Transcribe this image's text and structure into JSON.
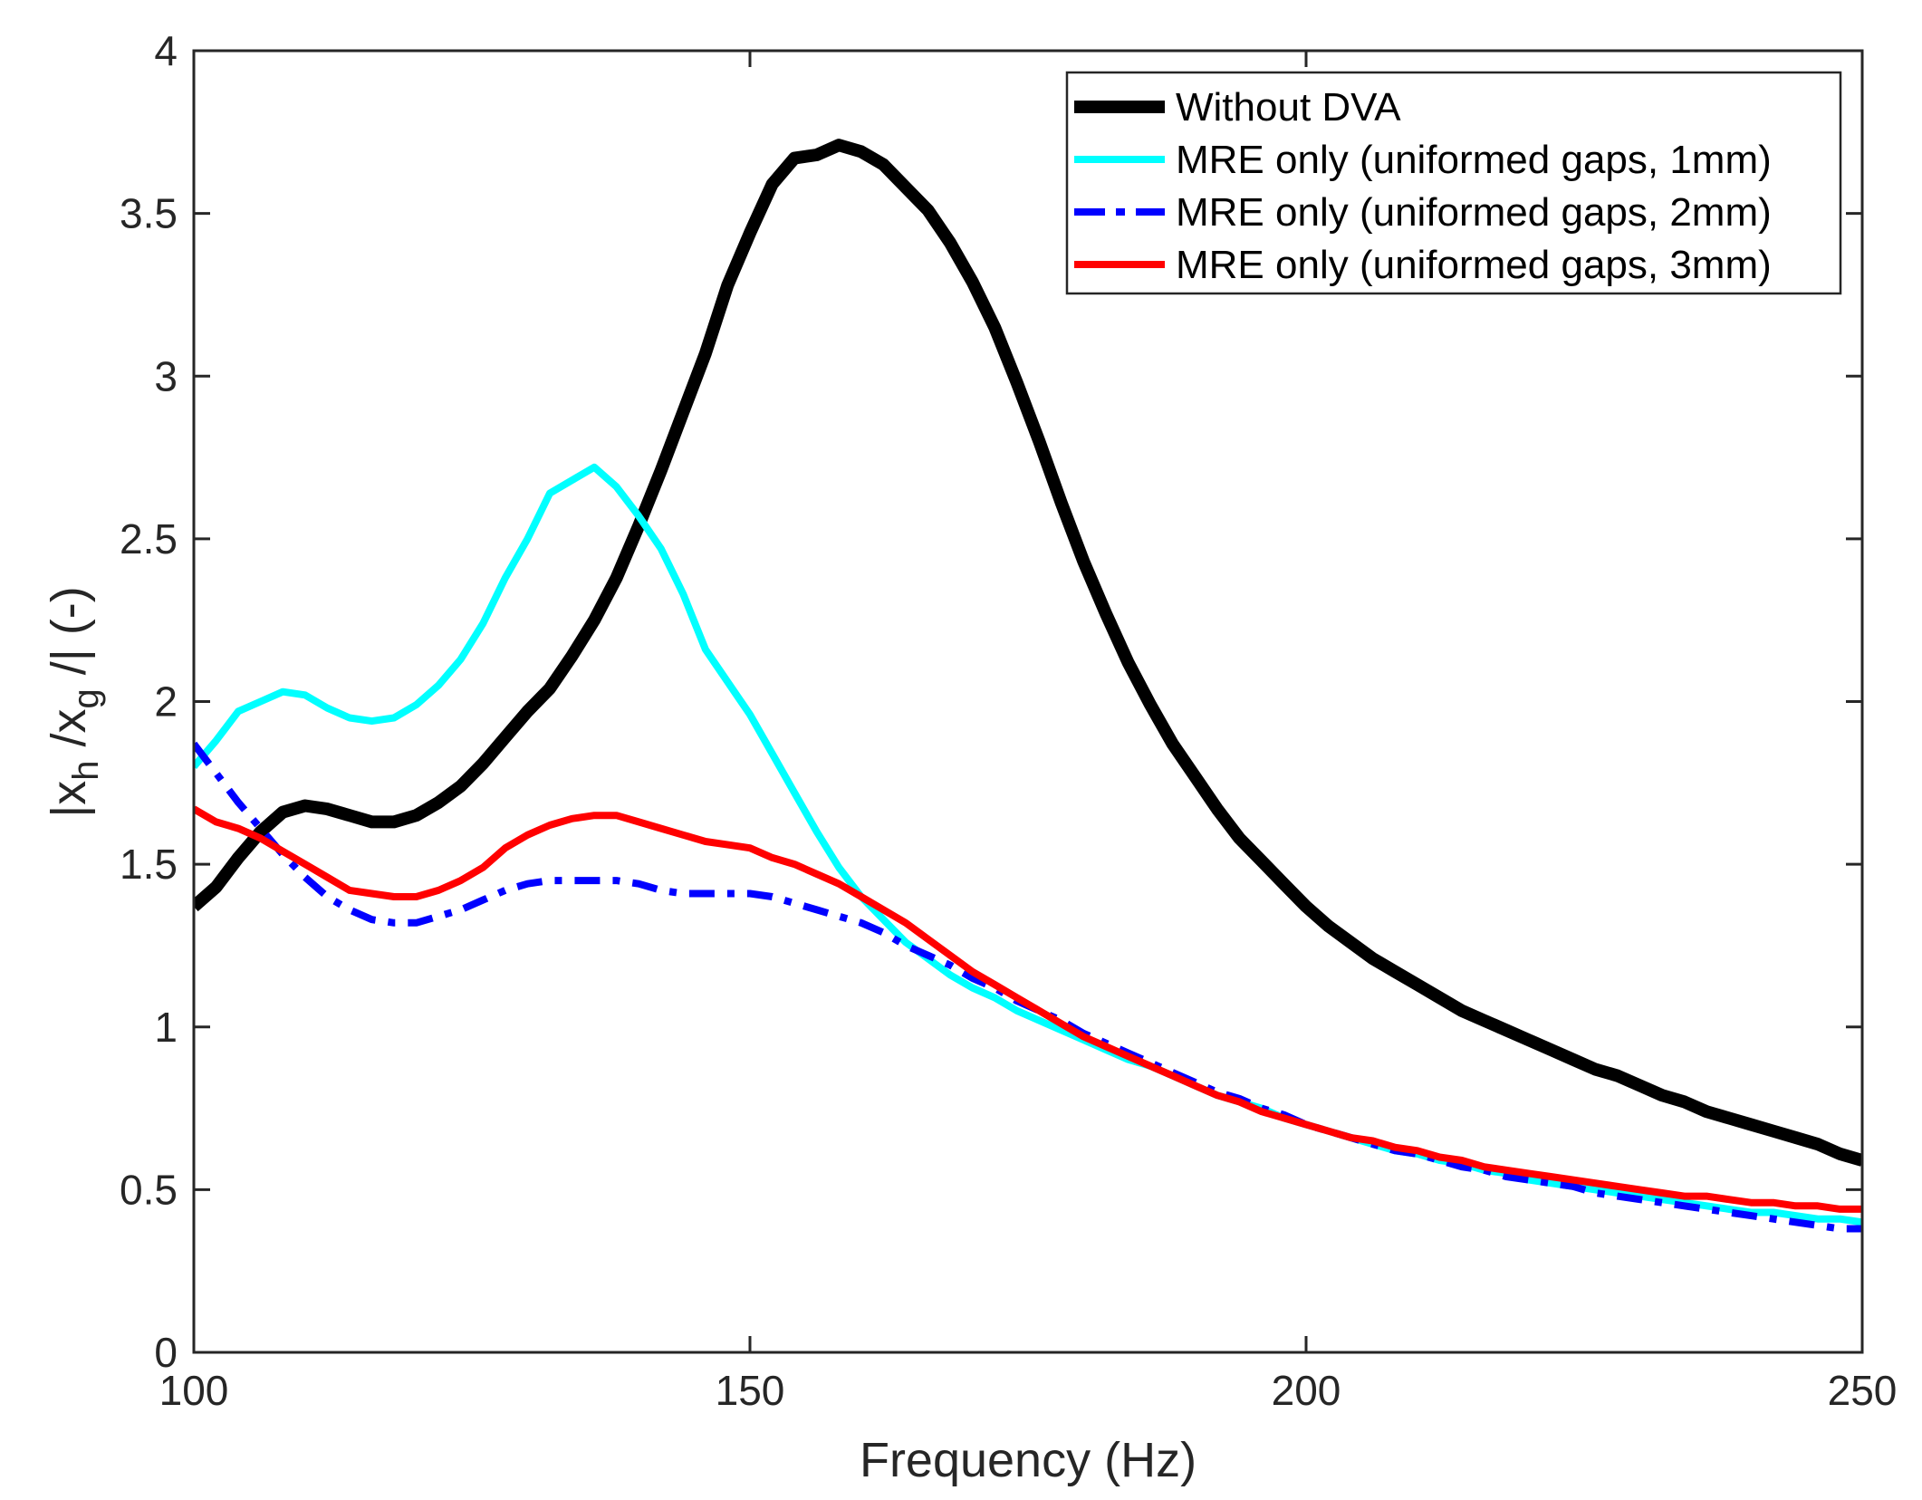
{
  "chart_data": {
    "type": "line",
    "xlabel": "Frequency (Hz)",
    "ylabel": {
      "parts": [
        "|x",
        "h",
        " /x",
        "g",
        " /| (-)"
      ]
    },
    "xlim": [
      100,
      250
    ],
    "ylim": [
      0,
      4
    ],
    "xticks": [
      {
        "value": 100,
        "label": "100"
      },
      {
        "value": 150,
        "label": "150"
      },
      {
        "value": 200,
        "label": "200"
      },
      {
        "value": 250,
        "label": "250"
      }
    ],
    "yticks": [
      {
        "value": 0,
        "label": "0"
      },
      {
        "value": 0.5,
        "label": "0.5"
      },
      {
        "value": 1,
        "label": "1"
      },
      {
        "value": 1.5,
        "label": "1.5"
      },
      {
        "value": 2,
        "label": "2"
      },
      {
        "value": 2.5,
        "label": "2.5"
      },
      {
        "value": 3,
        "label": "3"
      },
      {
        "value": 3.5,
        "label": "3.5"
      },
      {
        "value": 4,
        "label": "4"
      }
    ],
    "legend_position": "top-right",
    "series": [
      {
        "name": "Without DVA",
        "color": "#000000",
        "style": "solid",
        "width": "thick",
        "points": [
          [
            100,
            1.37
          ],
          [
            102,
            1.43
          ],
          [
            104,
            1.52
          ],
          [
            106,
            1.6
          ],
          [
            108,
            1.66
          ],
          [
            110,
            1.68
          ],
          [
            112,
            1.67
          ],
          [
            114,
            1.65
          ],
          [
            116,
            1.63
          ],
          [
            118,
            1.63
          ],
          [
            120,
            1.65
          ],
          [
            122,
            1.69
          ],
          [
            124,
            1.74
          ],
          [
            126,
            1.81
          ],
          [
            128,
            1.89
          ],
          [
            130,
            1.97
          ],
          [
            132,
            2.04
          ],
          [
            134,
            2.14
          ],
          [
            136,
            2.25
          ],
          [
            138,
            2.38
          ],
          [
            140,
            2.54
          ],
          [
            142,
            2.71
          ],
          [
            144,
            2.89
          ],
          [
            146,
            3.07
          ],
          [
            148,
            3.28
          ],
          [
            150,
            3.44
          ],
          [
            152,
            3.59
          ],
          [
            154,
            3.67
          ],
          [
            156,
            3.68
          ],
          [
            158,
            3.71
          ],
          [
            160,
            3.69
          ],
          [
            162,
            3.65
          ],
          [
            164,
            3.58
          ],
          [
            166,
            3.51
          ],
          [
            168,
            3.41
          ],
          [
            170,
            3.29
          ],
          [
            172,
            3.15
          ],
          [
            174,
            2.98
          ],
          [
            176,
            2.8
          ],
          [
            178,
            2.61
          ],
          [
            180,
            2.43
          ],
          [
            182,
            2.27
          ],
          [
            184,
            2.12
          ],
          [
            186,
            1.99
          ],
          [
            188,
            1.87
          ],
          [
            190,
            1.77
          ],
          [
            192,
            1.67
          ],
          [
            194,
            1.58
          ],
          [
            196,
            1.51
          ],
          [
            198,
            1.44
          ],
          [
            200,
            1.37
          ],
          [
            202,
            1.31
          ],
          [
            204,
            1.26
          ],
          [
            206,
            1.21
          ],
          [
            208,
            1.17
          ],
          [
            210,
            1.13
          ],
          [
            212,
            1.09
          ],
          [
            214,
            1.05
          ],
          [
            216,
            1.02
          ],
          [
            218,
            0.99
          ],
          [
            220,
            0.96
          ],
          [
            222,
            0.93
          ],
          [
            224,
            0.9
          ],
          [
            226,
            0.87
          ],
          [
            228,
            0.85
          ],
          [
            230,
            0.82
          ],
          [
            232,
            0.79
          ],
          [
            234,
            0.77
          ],
          [
            236,
            0.74
          ],
          [
            238,
            0.72
          ],
          [
            240,
            0.7
          ],
          [
            242,
            0.68
          ],
          [
            244,
            0.66
          ],
          [
            246,
            0.64
          ],
          [
            248,
            0.61
          ],
          [
            250,
            0.59
          ]
        ]
      },
      {
        "name": "MRE only (uniformed gaps, 1mm)",
        "color": "#00ffff",
        "style": "solid",
        "width": "normal",
        "points": [
          [
            100,
            1.8
          ],
          [
            102,
            1.88
          ],
          [
            104,
            1.97
          ],
          [
            106,
            2.0
          ],
          [
            108,
            2.03
          ],
          [
            110,
            2.02
          ],
          [
            112,
            1.98
          ],
          [
            114,
            1.95
          ],
          [
            116,
            1.94
          ],
          [
            118,
            1.95
          ],
          [
            120,
            1.99
          ],
          [
            122,
            2.05
          ],
          [
            124,
            2.13
          ],
          [
            126,
            2.24
          ],
          [
            128,
            2.38
          ],
          [
            130,
            2.5
          ],
          [
            132,
            2.64
          ],
          [
            134,
            2.68
          ],
          [
            136,
            2.72
          ],
          [
            138,
            2.66
          ],
          [
            140,
            2.57
          ],
          [
            142,
            2.47
          ],
          [
            144,
            2.33
          ],
          [
            146,
            2.16
          ],
          [
            148,
            2.06
          ],
          [
            150,
            1.96
          ],
          [
            152,
            1.84
          ],
          [
            154,
            1.72
          ],
          [
            156,
            1.6
          ],
          [
            158,
            1.49
          ],
          [
            160,
            1.4
          ],
          [
            162,
            1.33
          ],
          [
            164,
            1.26
          ],
          [
            166,
            1.21
          ],
          [
            168,
            1.16
          ],
          [
            170,
            1.12
          ],
          [
            172,
            1.09
          ],
          [
            174,
            1.05
          ],
          [
            176,
            1.02
          ],
          [
            178,
            0.99
          ],
          [
            180,
            0.96
          ],
          [
            182,
            0.93
          ],
          [
            184,
            0.9
          ],
          [
            186,
            0.88
          ],
          [
            188,
            0.85
          ],
          [
            190,
            0.82
          ],
          [
            192,
            0.79
          ],
          [
            194,
            0.77
          ],
          [
            196,
            0.75
          ],
          [
            198,
            0.72
          ],
          [
            200,
            0.7
          ],
          [
            202,
            0.68
          ],
          [
            204,
            0.66
          ],
          [
            206,
            0.64
          ],
          [
            208,
            0.62
          ],
          [
            210,
            0.61
          ],
          [
            212,
            0.59
          ],
          [
            214,
            0.58
          ],
          [
            216,
            0.56
          ],
          [
            218,
            0.55
          ],
          [
            220,
            0.53
          ],
          [
            222,
            0.52
          ],
          [
            224,
            0.51
          ],
          [
            226,
            0.5
          ],
          [
            228,
            0.49
          ],
          [
            230,
            0.48
          ],
          [
            232,
            0.47
          ],
          [
            234,
            0.46
          ],
          [
            236,
            0.45
          ],
          [
            238,
            0.44
          ],
          [
            240,
            0.43
          ],
          [
            242,
            0.43
          ],
          [
            244,
            0.42
          ],
          [
            246,
            0.41
          ],
          [
            248,
            0.41
          ],
          [
            250,
            0.4
          ]
        ]
      },
      {
        "name": "MRE only (uniformed gaps, 2mm)",
        "color": "#0000ff",
        "style": "dashdot",
        "width": "normal",
        "points": [
          [
            100,
            1.87
          ],
          [
            102,
            1.78
          ],
          [
            104,
            1.69
          ],
          [
            106,
            1.61
          ],
          [
            108,
            1.53
          ],
          [
            110,
            1.46
          ],
          [
            112,
            1.4
          ],
          [
            114,
            1.36
          ],
          [
            116,
            1.33
          ],
          [
            118,
            1.32
          ],
          [
            120,
            1.32
          ],
          [
            122,
            1.34
          ],
          [
            124,
            1.36
          ],
          [
            126,
            1.39
          ],
          [
            128,
            1.42
          ],
          [
            130,
            1.44
          ],
          [
            132,
            1.45
          ],
          [
            134,
            1.45
          ],
          [
            136,
            1.45
          ],
          [
            138,
            1.45
          ],
          [
            140,
            1.44
          ],
          [
            142,
            1.42
          ],
          [
            144,
            1.41
          ],
          [
            146,
            1.41
          ],
          [
            148,
            1.41
          ],
          [
            150,
            1.41
          ],
          [
            152,
            1.4
          ],
          [
            154,
            1.38
          ],
          [
            156,
            1.36
          ],
          [
            158,
            1.34
          ],
          [
            160,
            1.32
          ],
          [
            162,
            1.29
          ],
          [
            164,
            1.25
          ],
          [
            166,
            1.22
          ],
          [
            168,
            1.19
          ],
          [
            170,
            1.15
          ],
          [
            172,
            1.12
          ],
          [
            174,
            1.08
          ],
          [
            176,
            1.05
          ],
          [
            178,
            1.02
          ],
          [
            180,
            0.98
          ],
          [
            182,
            0.95
          ],
          [
            184,
            0.92
          ],
          [
            186,
            0.89
          ],
          [
            188,
            0.86
          ],
          [
            190,
            0.83
          ],
          [
            192,
            0.8
          ],
          [
            194,
            0.78
          ],
          [
            196,
            0.75
          ],
          [
            198,
            0.73
          ],
          [
            200,
            0.7
          ],
          [
            202,
            0.68
          ],
          [
            204,
            0.66
          ],
          [
            206,
            0.64
          ],
          [
            208,
            0.62
          ],
          [
            210,
            0.61
          ],
          [
            212,
            0.59
          ],
          [
            214,
            0.57
          ],
          [
            216,
            0.56
          ],
          [
            218,
            0.54
          ],
          [
            220,
            0.53
          ],
          [
            222,
            0.52
          ],
          [
            224,
            0.51
          ],
          [
            226,
            0.49
          ],
          [
            228,
            0.48
          ],
          [
            230,
            0.47
          ],
          [
            232,
            0.46
          ],
          [
            234,
            0.45
          ],
          [
            236,
            0.44
          ],
          [
            238,
            0.43
          ],
          [
            240,
            0.42
          ],
          [
            242,
            0.41
          ],
          [
            244,
            0.4
          ],
          [
            246,
            0.39
          ],
          [
            248,
            0.38
          ],
          [
            250,
            0.38
          ]
        ]
      },
      {
        "name": "MRE only (uniformed gaps, 3mm)",
        "color": "#ff0000",
        "style": "solid",
        "width": "normal",
        "points": [
          [
            100,
            1.67
          ],
          [
            102,
            1.63
          ],
          [
            104,
            1.61
          ],
          [
            106,
            1.58
          ],
          [
            108,
            1.54
          ],
          [
            110,
            1.5
          ],
          [
            112,
            1.46
          ],
          [
            114,
            1.42
          ],
          [
            116,
            1.41
          ],
          [
            118,
            1.4
          ],
          [
            120,
            1.4
          ],
          [
            122,
            1.42
          ],
          [
            124,
            1.45
          ],
          [
            126,
            1.49
          ],
          [
            128,
            1.55
          ],
          [
            130,
            1.59
          ],
          [
            132,
            1.62
          ],
          [
            134,
            1.64
          ],
          [
            136,
            1.65
          ],
          [
            138,
            1.65
          ],
          [
            140,
            1.63
          ],
          [
            142,
            1.61
          ],
          [
            144,
            1.59
          ],
          [
            146,
            1.57
          ],
          [
            148,
            1.56
          ],
          [
            150,
            1.55
          ],
          [
            152,
            1.52
          ],
          [
            154,
            1.5
          ],
          [
            156,
            1.47
          ],
          [
            158,
            1.44
          ],
          [
            160,
            1.4
          ],
          [
            162,
            1.36
          ],
          [
            164,
            1.32
          ],
          [
            166,
            1.27
          ],
          [
            168,
            1.22
          ],
          [
            170,
            1.17
          ],
          [
            172,
            1.13
          ],
          [
            174,
            1.09
          ],
          [
            176,
            1.05
          ],
          [
            178,
            1.01
          ],
          [
            180,
            0.97
          ],
          [
            182,
            0.94
          ],
          [
            184,
            0.91
          ],
          [
            186,
            0.88
          ],
          [
            188,
            0.85
          ],
          [
            190,
            0.82
          ],
          [
            192,
            0.79
          ],
          [
            194,
            0.77
          ],
          [
            196,
            0.74
          ],
          [
            198,
            0.72
          ],
          [
            200,
            0.7
          ],
          [
            202,
            0.68
          ],
          [
            204,
            0.66
          ],
          [
            206,
            0.65
          ],
          [
            208,
            0.63
          ],
          [
            210,
            0.62
          ],
          [
            212,
            0.6
          ],
          [
            214,
            0.59
          ],
          [
            216,
            0.57
          ],
          [
            218,
            0.56
          ],
          [
            220,
            0.55
          ],
          [
            222,
            0.54
          ],
          [
            224,
            0.53
          ],
          [
            226,
            0.52
          ],
          [
            228,
            0.51
          ],
          [
            230,
            0.5
          ],
          [
            232,
            0.49
          ],
          [
            234,
            0.48
          ],
          [
            236,
            0.48
          ],
          [
            238,
            0.47
          ],
          [
            240,
            0.46
          ],
          [
            242,
            0.46
          ],
          [
            244,
            0.45
          ],
          [
            246,
            0.45
          ],
          [
            248,
            0.44
          ],
          [
            250,
            0.44
          ]
        ]
      }
    ]
  }
}
